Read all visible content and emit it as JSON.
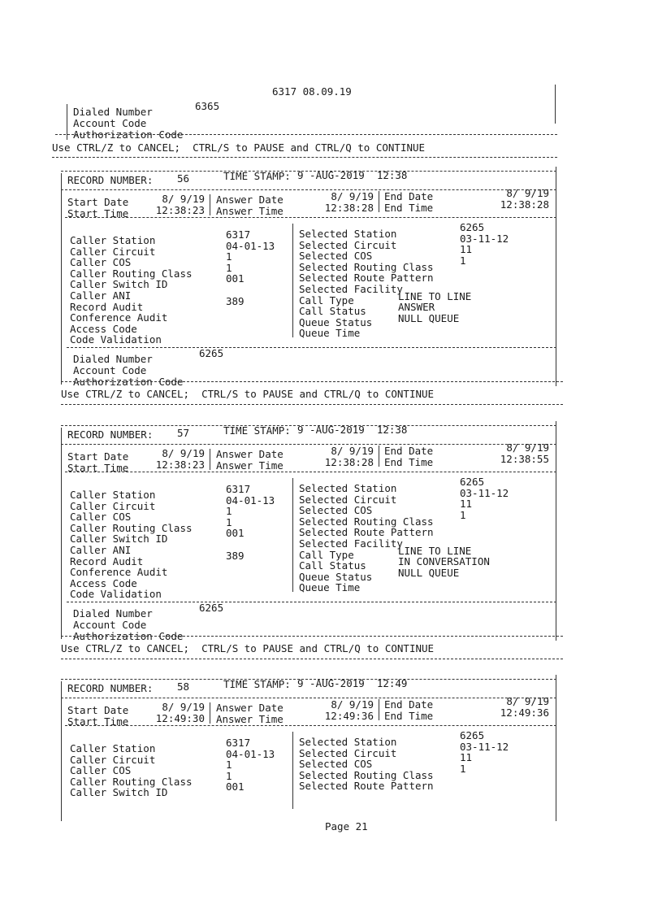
{
  "page_header": "6317 08.09.19",
  "page_footer": "Page 21",
  "ctrl_message": "Use CTRL/Z to CANCEL;  CTRL/S to PAUSE and CTRL/Q to CONTINUE",
  "labels": {
    "record_number": "RECORD NUMBER:",
    "time_stamp": "TIME STAMP:",
    "start_date": "Start Date",
    "start_time": "Start Time",
    "answer_date": "Answer Date",
    "answer_time": "Answer Time",
    "end_date": "End Date",
    "end_time": "End Time",
    "dialed_number": "Dialed Number",
    "account_code": "Account Code",
    "authorization_code": "Authorization Code"
  },
  "top_dialed": {
    "dialed_number": "6365"
  },
  "records": [
    {
      "record_number": "56",
      "time_stamp": "9 -AUG-2019  12:38",
      "start_date": "8/ 9/19",
      "start_time": "12:38:23",
      "answer_date": "8/ 9/19",
      "answer_time": "12:38:28",
      "end_date": "8/ 9/19",
      "end_time": "12:38:28",
      "left": [
        {
          "label": "Caller Station",
          "value": "6317"
        },
        {
          "label": "Caller Circuit",
          "value": "04-01-13"
        },
        {
          "label": "Caller COS",
          "value": "1"
        },
        {
          "label": "Caller Routing Class",
          "value": "1"
        },
        {
          "label": "Caller Switch ID",
          "value": "001"
        },
        {
          "label": "Caller ANI",
          "value": ""
        },
        {
          "label": "Record Audit",
          "value": "389"
        },
        {
          "label": "Conference Audit",
          "value": ""
        },
        {
          "label": "Access Code",
          "value": ""
        },
        {
          "label": "Code Validation",
          "value": ""
        }
      ],
      "right": [
        {
          "label": "Selected Station",
          "value": "6265"
        },
        {
          "label": "Selected Circuit",
          "value": "03-11-12"
        },
        {
          "label": "Selected COS",
          "value": "11"
        },
        {
          "label": "Selected Routing Class",
          "value": "1"
        },
        {
          "label": "Selected Route Pattern",
          "value": ""
        },
        {
          "label": "Selected Facility",
          "value": ""
        },
        {
          "label": "Call Type",
          "value": "LINE TO LINE"
        },
        {
          "label": "Call Status",
          "value": "ANSWER"
        },
        {
          "label": "Queue Status",
          "value": "NULL QUEUE"
        },
        {
          "label": "Queue Time",
          "value": ""
        }
      ],
      "dialed_number": "6265"
    },
    {
      "record_number": "57",
      "time_stamp": "9 -AUG-2019  12:38",
      "start_date": "8/ 9/19",
      "start_time": "12:38:23",
      "answer_date": "8/ 9/19",
      "answer_time": "12:38:28",
      "end_date": "8/ 9/19",
      "end_time": "12:38:55",
      "left": [
        {
          "label": "Caller Station",
          "value": "6317"
        },
        {
          "label": "Caller Circuit",
          "value": "04-01-13"
        },
        {
          "label": "Caller COS",
          "value": "1"
        },
        {
          "label": "Caller Routing Class",
          "value": "1"
        },
        {
          "label": "Caller Switch ID",
          "value": "001"
        },
        {
          "label": "Caller ANI",
          "value": ""
        },
        {
          "label": "Record Audit",
          "value": "389"
        },
        {
          "label": "Conference Audit",
          "value": ""
        },
        {
          "label": "Access Code",
          "value": ""
        },
        {
          "label": "Code Validation",
          "value": ""
        }
      ],
      "right": [
        {
          "label": "Selected Station",
          "value": "6265"
        },
        {
          "label": "Selected Circuit",
          "value": "03-11-12"
        },
        {
          "label": "Selected COS",
          "value": "11"
        },
        {
          "label": "Selected Routing Class",
          "value": "1"
        },
        {
          "label": "Selected Route Pattern",
          "value": ""
        },
        {
          "label": "Selected Facility",
          "value": ""
        },
        {
          "label": "Call Type",
          "value": "LINE TO LINE"
        },
        {
          "label": "Call Status",
          "value": "IN CONVERSATION"
        },
        {
          "label": "Queue Status",
          "value": "NULL QUEUE"
        },
        {
          "label": "Queue Time",
          "value": ""
        }
      ],
      "dialed_number": "6265"
    },
    {
      "record_number": "58",
      "time_stamp": "9 -AUG-2019  12:49",
      "start_date": "8/ 9/19",
      "start_time": "12:49:30",
      "answer_date": "8/ 9/19",
      "answer_time": "12:49:36",
      "end_date": "8/ 9/19",
      "end_time": "12:49:36",
      "left": [
        {
          "label": "Caller Station",
          "value": "6317"
        },
        {
          "label": "Caller Circuit",
          "value": "04-01-13"
        },
        {
          "label": "Caller COS",
          "value": "1"
        },
        {
          "label": "Caller Routing Class",
          "value": "1"
        },
        {
          "label": "Caller Switch ID",
          "value": "001"
        }
      ],
      "right": [
        {
          "label": "Selected Station",
          "value": "6265"
        },
        {
          "label": "Selected Circuit",
          "value": "03-11-12"
        },
        {
          "label": "Selected COS",
          "value": "11"
        },
        {
          "label": "Selected Routing Class",
          "value": "1"
        },
        {
          "label": "Selected Route Pattern",
          "value": ""
        }
      ]
    }
  ]
}
